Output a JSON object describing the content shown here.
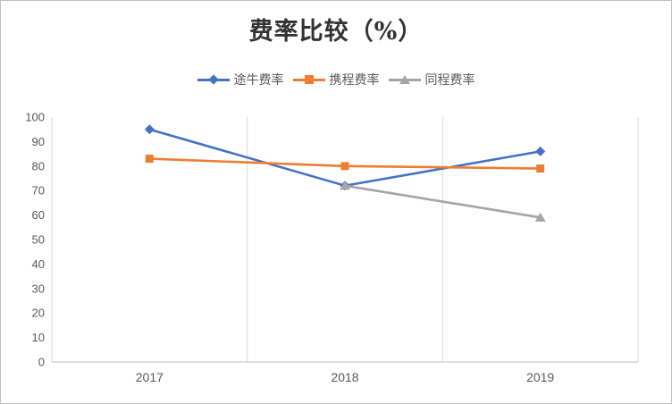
{
  "title": "费率比较（%）",
  "chart_data": {
    "type": "line",
    "title": "费率比较（%）",
    "categories": [
      "2017",
      "2018",
      "2019"
    ],
    "series": [
      {
        "name": "途牛费率",
        "marker": "diamond",
        "color": "#4472C4",
        "values": [
          95,
          72,
          86
        ]
      },
      {
        "name": "携程费率",
        "marker": "square",
        "color": "#ED7D31",
        "values": [
          83,
          80,
          79
        ]
      },
      {
        "name": "同程费率",
        "marker": "triangle",
        "color": "#A5A5A5",
        "values": [
          null,
          72,
          59
        ]
      }
    ],
    "xlabel": "",
    "ylabel": "",
    "ylim": [
      0,
      100
    ],
    "y_tick_step": 10,
    "y_tick_labels": [
      "0",
      "10",
      "20",
      "30",
      "40",
      "50",
      "60",
      "70",
      "80",
      "90",
      "100"
    ],
    "grid": "vertical-only",
    "legend_position": "top"
  },
  "colors": {
    "axis": "#BFBFBF",
    "gridline": "#D9D9D9",
    "tick_text": "#595959",
    "border": "#BFBFBF",
    "background": "#FFFFFF"
  }
}
